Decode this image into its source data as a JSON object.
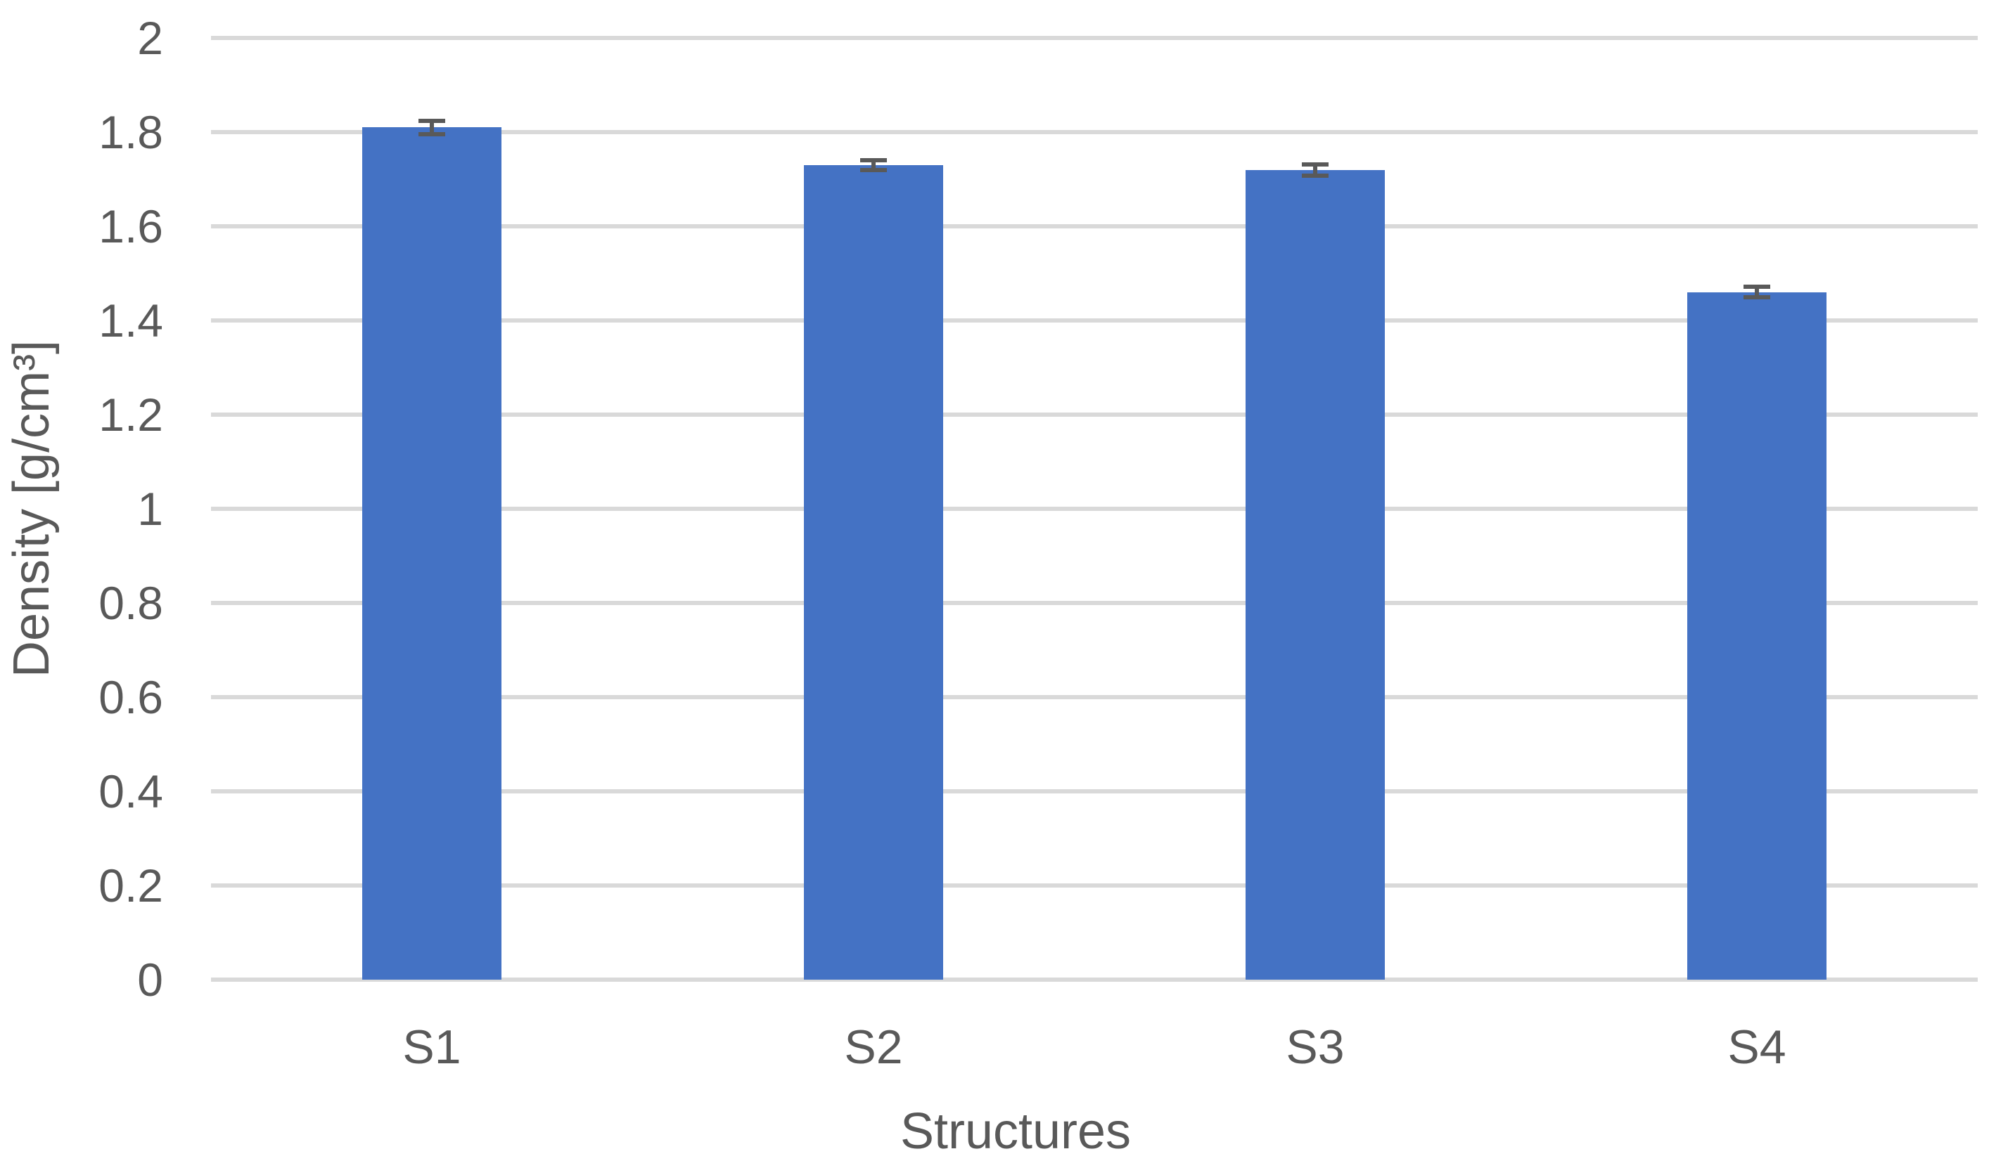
{
  "chart_data": {
    "type": "bar",
    "title": "",
    "categories": [
      "S1",
      "S2",
      "S3",
      "S4"
    ],
    "values": [
      1.81,
      1.73,
      1.72,
      1.46
    ],
    "error_bars": [
      0.014,
      0.01,
      0.012,
      0.011
    ],
    "xlabel": "Structures",
    "ylabel": "Density [g/cm³]",
    "ylim": [
      0,
      2
    ],
    "ytick_step": 0.2,
    "yticks": [
      {
        "value": 0,
        "label": "0"
      },
      {
        "value": 0.2,
        "label": "0.2"
      },
      {
        "value": 0.4,
        "label": "0.4"
      },
      {
        "value": 0.6,
        "label": "0.6"
      },
      {
        "value": 0.8,
        "label": "0.8"
      },
      {
        "value": 1,
        "label": "1"
      },
      {
        "value": 1.2,
        "label": "1.2"
      },
      {
        "value": 1.4,
        "label": "1.4"
      },
      {
        "value": 1.6,
        "label": "1.6"
      },
      {
        "value": 1.8,
        "label": "1.8"
      },
      {
        "value": 2,
        "label": "2"
      }
    ],
    "grid": "horizontal",
    "legend": "none",
    "colors": {
      "bar": "#4472C4",
      "error_bar": "#595959",
      "gridline": "#D9D9D9",
      "text": "#595959",
      "background": "#FFFFFF"
    }
  }
}
